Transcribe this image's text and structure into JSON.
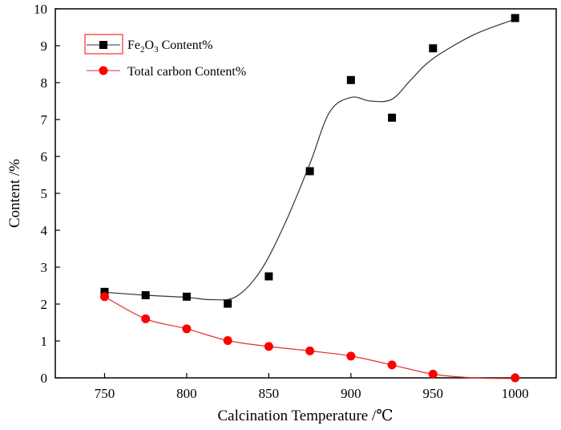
{
  "chart_data": {
    "type": "scatter",
    "xlabel": "Calcination Temperature /℃",
    "ylabel": "Content /%",
    "xlim": [
      720,
      1025
    ],
    "ylim": [
      0,
      10
    ],
    "xticks": [
      750,
      800,
      850,
      900,
      950,
      1000
    ],
    "yticks": [
      0,
      1,
      2,
      3,
      4,
      5,
      6,
      7,
      8,
      9,
      10
    ],
    "legend_position": "top-left",
    "grid": false,
    "series": [
      {
        "name": "Fe2O3 Content%",
        "name_main": "Fe",
        "name_sub1": "2",
        "name_mid": "O",
        "name_sub2": "3",
        "name_rest": " Content%",
        "marker": "square",
        "color": "#000000",
        "line_color": "#333333",
        "x": [
          750,
          775,
          800,
          825,
          850,
          875,
          900,
          925,
          950,
          1000
        ],
        "y": [
          2.33,
          2.24,
          2.2,
          2.01,
          2.75,
          5.6,
          8.07,
          7.05,
          8.93,
          9.75
        ],
        "curve": [
          [
            750,
            2.32
          ],
          [
            775,
            2.24
          ],
          [
            800,
            2.18
          ],
          [
            815,
            2.12
          ],
          [
            830,
            2.2
          ],
          [
            845,
            2.9
          ],
          [
            860,
            4.2
          ],
          [
            875,
            5.8
          ],
          [
            887,
            7.2
          ],
          [
            900,
            7.6
          ],
          [
            912,
            7.5
          ],
          [
            925,
            7.55
          ],
          [
            937,
            8.1
          ],
          [
            950,
            8.65
          ],
          [
            975,
            9.3
          ],
          [
            1000,
            9.72
          ]
        ]
      },
      {
        "name": "Total carbon Content%",
        "marker": "circle",
        "color": "#ff0000",
        "line_color": "#e03030",
        "x": [
          750,
          775,
          800,
          825,
          850,
          875,
          900,
          925,
          950,
          1000
        ],
        "y": [
          2.2,
          1.6,
          1.33,
          1.01,
          0.85,
          0.73,
          0.59,
          0.35,
          0.1,
          0.0
        ],
        "curve": [
          [
            750,
            2.2
          ],
          [
            775,
            1.6
          ],
          [
            800,
            1.33
          ],
          [
            825,
            1.01
          ],
          [
            850,
            0.85
          ],
          [
            875,
            0.73
          ],
          [
            900,
            0.59
          ],
          [
            925,
            0.35
          ],
          [
            950,
            0.1
          ],
          [
            975,
            0.0
          ],
          [
            1000,
            -0.02
          ]
        ]
      }
    ]
  }
}
